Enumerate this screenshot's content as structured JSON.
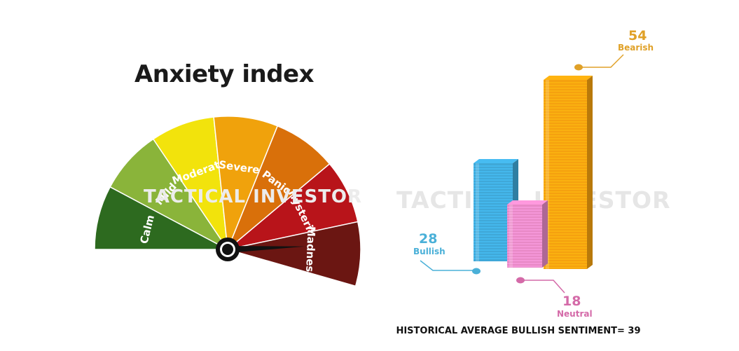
{
  "colors": {
    "calm": "#2d6a1f",
    "mild": "#8ab43a",
    "moderate": "#f2e30c",
    "severe": "#f0a20c",
    "panic": "#d9700a",
    "hysteria": "#b8141a",
    "madness": "#6b1612",
    "bullish": "#3fa8d8",
    "neutral": "#e889c6",
    "bearish": "#f5a10f",
    "bullish_label": "#4ab0d8",
    "neutral_label": "#d46aa8",
    "bearish_label": "#e0a128"
  },
  "watermark_text": "TACTICAL INVESTOR",
  "footer_note": "HISTORICAL AVERAGE BULLISH SENTIMENT= 39",
  "chart_data": [
    {
      "type": "gauge",
      "title": "Anxiety index",
      "categories": [
        "Calm",
        "Mild",
        "Moderate",
        "Severe",
        "Panic",
        "Hysteria",
        "Madness"
      ],
      "selected": "Madness"
    },
    {
      "type": "bar",
      "categories": [
        "Bullish",
        "Neutral",
        "Bearish"
      ],
      "values": [
        28,
        18,
        54
      ],
      "ylim": [
        0,
        60
      ]
    }
  ]
}
